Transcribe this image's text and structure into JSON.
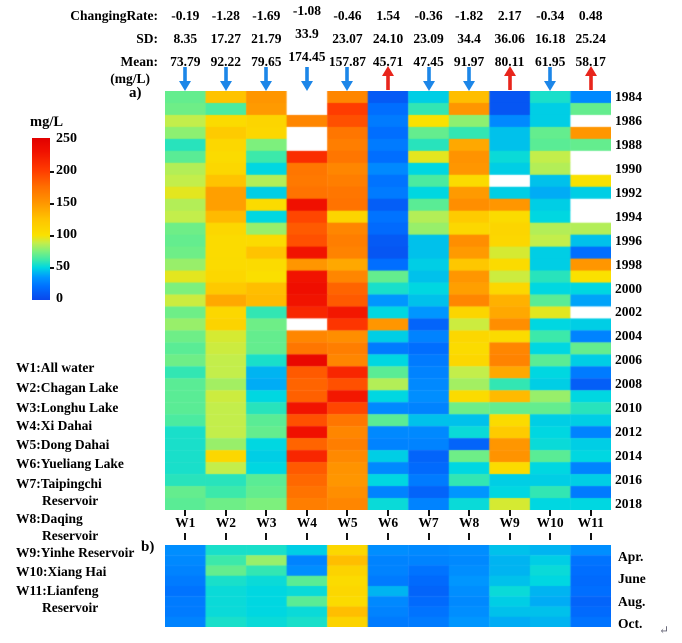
{
  "header": {
    "stat_labels": [
      "ChangingRate:",
      "SD:",
      "Mean:"
    ],
    "unit_label": "(mg/L)"
  },
  "colorbar": {
    "title": "mg/L",
    "tick_labels": [
      "250",
      "200",
      "150",
      "100",
      "50",
      "0"
    ],
    "vmin": 0,
    "vmax": 250
  },
  "legend_items": [
    [
      "W1:All water"
    ],
    [
      "W2:Chagan Lake"
    ],
    [
      "W3:Longhu Lake"
    ],
    [
      "W4:Xi Dahai"
    ],
    [
      "W5:Dong Dahai"
    ],
    [
      "W6:Yueliang Lake"
    ],
    [
      "W7:Taipingchi",
      "Reservoir"
    ],
    [
      "W8:Daqing",
      "Reservoir"
    ],
    [
      "W9:Yinhe Reservoir"
    ],
    [
      "W10:Xiang Hai"
    ],
    [
      "W11:Lianfeng",
      "Reservoir"
    ]
  ],
  "footer": {
    "return_mark": "↵"
  },
  "colors": {
    "arrow_up": "#e8251c",
    "arrow_down": "#1c86e8",
    "text": "#000000",
    "missing_cell": "#ffffff",
    "colormap_stops": [
      [
        0,
        "#0a46eb"
      ],
      [
        20,
        "#006eff"
      ],
      [
        35,
        "#0096ff"
      ],
      [
        50,
        "#00d7e1"
      ],
      [
        62,
        "#3ce9aa"
      ],
      [
        75,
        "#7df07d"
      ],
      [
        88,
        "#c3ee4b"
      ],
      [
        100,
        "#fae100"
      ],
      [
        125,
        "#ffc300"
      ],
      [
        150,
        "#ff9600"
      ],
      [
        175,
        "#ff6e00"
      ],
      [
        200,
        "#ff3c00"
      ],
      [
        230,
        "#f01000"
      ],
      [
        250,
        "#e10000"
      ]
    ]
  },
  "chart_data": [
    {
      "id": "a",
      "panel_label": "a)",
      "type": "heatmap",
      "unit": "mg/L",
      "vmin": 0,
      "vmax": 250,
      "legend_position": "left",
      "grid": false,
      "columns": [
        "W1",
        "W2",
        "W3",
        "W4",
        "W5",
        "W6",
        "W7",
        "W8",
        "W9",
        "W10",
        "W11"
      ],
      "column_stats": {
        "changing_rate": [
          "-0.19",
          "-1.28",
          "-1.69",
          "-1.08",
          "-0.46",
          "1.54",
          "-0.36",
          "-1.82",
          "2.17",
          "-0.34",
          "0.48"
        ],
        "sd": [
          "8.35",
          "17.27",
          "21.79",
          "33.9",
          "23.07",
          "24.10",
          "23.09",
          "34.4",
          "36.06",
          "16.18",
          "25.24"
        ],
        "mean": [
          "73.79",
          "92.22",
          "79.65",
          "174.45",
          "157.87",
          "45.71",
          "47.45",
          "91.97",
          "80.11",
          "61.95",
          "58.17"
        ]
      },
      "trend": [
        "down",
        "down",
        "down",
        "down",
        "down",
        "up",
        "down",
        "down",
        "up",
        "down",
        "up"
      ],
      "years": [
        1984,
        1985,
        1986,
        1987,
        1988,
        1989,
        1990,
        1991,
        1992,
        1993,
        1994,
        1995,
        1996,
        1997,
        1998,
        1999,
        2000,
        2001,
        2002,
        2003,
        2004,
        2005,
        2006,
        2007,
        2008,
        2009,
        2010,
        2011,
        2012,
        2013,
        2014,
        2015,
        2016,
        2017,
        2018
      ],
      "year_tick_labels": [
        "1984",
        "1986",
        "1988",
        "1990",
        "1992",
        "1994",
        "1996",
        "1998",
        "2000",
        "2002",
        "2004",
        "2006",
        "2008",
        "2010",
        "2012",
        "2014",
        "2016",
        "2018"
      ],
      "values": [
        [
          70,
          125,
          150,
          null,
          160,
          10,
          48,
          128,
          8,
          55,
          30
        ],
        [
          72,
          65,
          148,
          null,
          200,
          20,
          60,
          150,
          8,
          48,
          70
        ],
        [
          88,
          105,
          110,
          160,
          190,
          25,
          100,
          78,
          30,
          48,
          null
        ],
        [
          78,
          118,
          108,
          null,
          170,
          20,
          70,
          60,
          45,
          70,
          150
        ],
        [
          58,
          108,
          75,
          null,
          165,
          25,
          58,
          140,
          45,
          68,
          70
        ],
        [
          68,
          105,
          62,
          210,
          170,
          20,
          95,
          152,
          52,
          88,
          null
        ],
        [
          85,
          108,
          50,
          170,
          160,
          30,
          50,
          150,
          48,
          85,
          null
        ],
        [
          88,
          125,
          85,
          168,
          165,
          22,
          65,
          105,
          null,
          45,
          100
        ],
        [
          95,
          145,
          48,
          172,
          170,
          25,
          50,
          148,
          48,
          40,
          48
        ],
        [
          85,
          145,
          105,
          230,
          172,
          12,
          68,
          155,
          150,
          48,
          null
        ],
        [
          88,
          130,
          50,
          195,
          110,
          22,
          85,
          118,
          105,
          50,
          null
        ],
        [
          72,
          108,
          80,
          185,
          160,
          18,
          80,
          108,
          110,
          85,
          85
        ],
        [
          70,
          105,
          105,
          190,
          165,
          10,
          45,
          155,
          108,
          88,
          45
        ],
        [
          72,
          105,
          125,
          228,
          162,
          8,
          45,
          148,
          92,
          48,
          20
        ],
        [
          80,
          105,
          105,
          150,
          140,
          20,
          48,
          122,
          105,
          48,
          150
        ],
        [
          95,
          108,
          102,
          228,
          160,
          70,
          45,
          150,
          90,
          58,
          100
        ],
        [
          75,
          120,
          128,
          232,
          180,
          55,
          50,
          145,
          108,
          50,
          50
        ],
        [
          90,
          140,
          130,
          228,
          185,
          35,
          45,
          160,
          135,
          68,
          38
        ],
        [
          72,
          108,
          60,
          215,
          225,
          50,
          35,
          110,
          140,
          95,
          null
        ],
        [
          80,
          112,
          72,
          null,
          205,
          150,
          15,
          90,
          155,
          50,
          48
        ],
        [
          72,
          92,
          70,
          160,
          155,
          48,
          28,
          108,
          105,
          62,
          28
        ],
        [
          68,
          90,
          70,
          170,
          165,
          25,
          20,
          105,
          160,
          50,
          70
        ],
        [
          72,
          88,
          55,
          240,
          160,
          50,
          25,
          108,
          162,
          68,
          48
        ],
        [
          60,
          88,
          42,
          185,
          215,
          68,
          28,
          88,
          140,
          50,
          25
        ],
        [
          68,
          82,
          40,
          180,
          190,
          85,
          30,
          82,
          60,
          48,
          12
        ],
        [
          68,
          90,
          50,
          182,
          225,
          50,
          32,
          105,
          130,
          80,
          50
        ],
        [
          68,
          88,
          58,
          228,
          195,
          30,
          28,
          72,
          70,
          70,
          58
        ],
        [
          65,
          88,
          68,
          190,
          170,
          68,
          45,
          45,
          105,
          48,
          48
        ],
        [
          55,
          88,
          70,
          230,
          160,
          30,
          30,
          52,
          118,
          50,
          28
        ],
        [
          55,
          80,
          50,
          180,
          165,
          28,
          28,
          15,
          150,
          52,
          48
        ],
        [
          55,
          108,
          48,
          215,
          158,
          48,
          15,
          72,
          152,
          68,
          50
        ],
        [
          55,
          88,
          50,
          185,
          152,
          30,
          18,
          50,
          105,
          50,
          28
        ],
        [
          58,
          58,
          68,
          178,
          150,
          50,
          25,
          60,
          48,
          48,
          48
        ],
        [
          70,
          62,
          70,
          172,
          155,
          28,
          15,
          35,
          50,
          60,
          25
        ],
        [
          68,
          72,
          75,
          165,
          160,
          52,
          28,
          52,
          92,
          50,
          50
        ]
      ]
    },
    {
      "id": "b",
      "panel_label": "b)",
      "type": "heatmap",
      "unit": "mg/L",
      "vmin": 0,
      "vmax": 250,
      "columns": [
        "W1",
        "W2",
        "W3",
        "W4",
        "W5",
        "W6",
        "W7",
        "W8",
        "W9",
        "W10",
        "W11"
      ],
      "month_labels": [
        "Apr.",
        "June",
        "Aug.",
        "Oct."
      ],
      "rows_per_month": 2,
      "values": [
        [
          32,
          55,
          55,
          48,
          108,
          32,
          30,
          32,
          45,
          42,
          32
        ],
        [
          30,
          62,
          80,
          28,
          128,
          28,
          28,
          30,
          42,
          48,
          22
        ],
        [
          28,
          70,
          60,
          32,
          112,
          28,
          22,
          32,
          42,
          52,
          20
        ],
        [
          25,
          55,
          52,
          68,
          105,
          25,
          18,
          35,
          45,
          50,
          18
        ],
        [
          22,
          52,
          50,
          52,
          108,
          42,
          15,
          32,
          52,
          42,
          20
        ],
        [
          25,
          52,
          50,
          68,
          105,
          30,
          18,
          30,
          48,
          40,
          15
        ],
        [
          25,
          52,
          50,
          52,
          128,
          28,
          22,
          32,
          45,
          45,
          18
        ],
        [
          28,
          55,
          52,
          55,
          112,
          25,
          25,
          35,
          40,
          42,
          22
        ]
      ]
    }
  ]
}
